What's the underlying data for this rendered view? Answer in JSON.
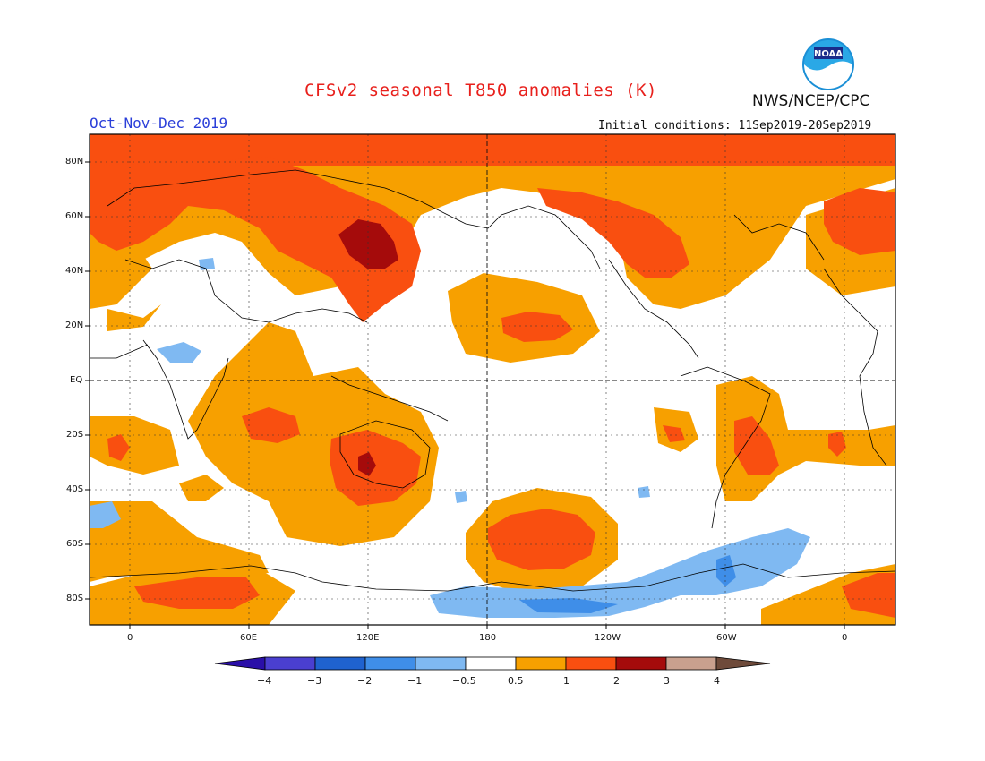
{
  "title": "CFSv2 seasonal T850 anomalies (K)",
  "season": "Oct-Nov-Dec 2019",
  "agency": "NWS/NCEP/CPC",
  "logo_text": "NOAA",
  "initial_conditions": "Initial conditions: 11Sep2019-20Sep2019",
  "lat_labels": [
    "80N",
    "60N",
    "40N",
    "20N",
    "EQ",
    "20S",
    "40S",
    "60S",
    "80S"
  ],
  "lon_labels": [
    "0",
    "60E",
    "120E",
    "180",
    "120W",
    "60W",
    "0"
  ],
  "colorbar": {
    "labels": [
      "−4",
      "−3",
      "−2",
      "−1",
      "−0.5",
      "0.5",
      "1",
      "2",
      "3",
      "4"
    ],
    "colors": [
      "#2a0fa8",
      "#4a3fd0",
      "#1f62cf",
      "#3f8ee8",
      "#7fb9f2",
      "#ffffff",
      "#f7a000",
      "#f94f10",
      "#a50b0b",
      "#c9a08e",
      "#6e4a3a"
    ]
  },
  "colors": {
    "light_orange": "#f7a000",
    "red_orange": "#f94f10",
    "dark_red": "#a50b0b",
    "light_blue": "#7fb9f2",
    "mid_blue": "#3f8ee8"
  }
}
